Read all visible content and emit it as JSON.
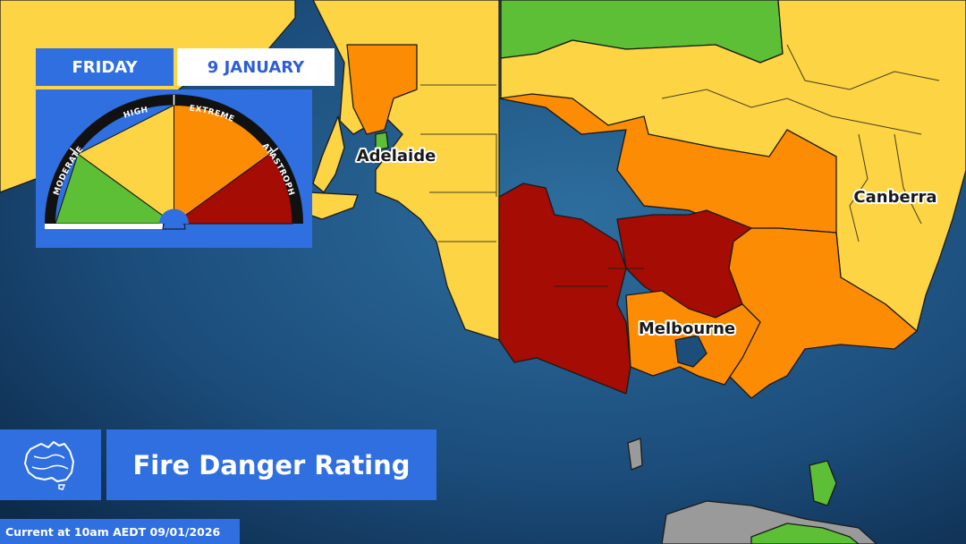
{
  "header": {
    "day": "FRIDAY",
    "date": "9 JANUARY"
  },
  "gauge": {
    "levels": [
      {
        "label": "MODERATE",
        "color": "#5cbf35"
      },
      {
        "label": "HIGH",
        "color": "#fcd444"
      },
      {
        "label": "EXTREME",
        "color": "#fc8c04"
      },
      {
        "label": "CATASTROPHIC",
        "color": "#a40c04"
      }
    ]
  },
  "map": {
    "cities": [
      {
        "name": "Adelaide"
      },
      {
        "name": "Melbourne"
      },
      {
        "name": "Canberra"
      }
    ],
    "colors": {
      "ocean": "#1d4e7a",
      "moderate": "#5cbf35",
      "high": "#fcd444",
      "extreme": "#fc8c04",
      "catastrophic": "#a40c04",
      "none": "#9a9a9a"
    }
  },
  "footer": {
    "title": "Fire Danger Rating",
    "timestamp": "Current at 10am AEDT 09/01/2026",
    "icon": "australia-map-icon"
  }
}
